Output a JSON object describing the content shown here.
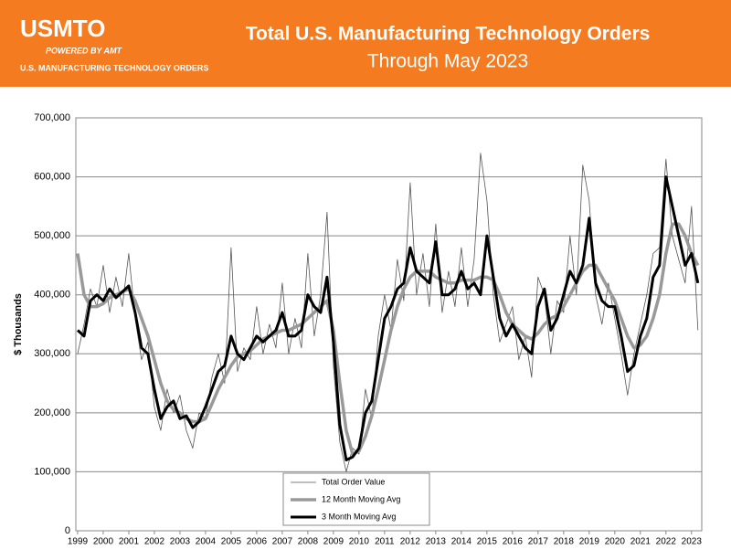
{
  "header": {
    "logo": "USMTO",
    "powered_by": "POWERED BY AMT",
    "tagline": "U.S. MANUFACTURING TECHNOLOGY ORDERS"
  },
  "chart_data": {
    "type": "line",
    "title": "Total U.S. Manufacturing Technology Orders",
    "subtitle": "Through May 2023",
    "y_label": "$ Thousands",
    "x": [
      1999,
      1999.25,
      1999.5,
      1999.75,
      2000,
      2000.25,
      2000.5,
      2000.75,
      2001,
      2001.25,
      2001.5,
      2001.75,
      2002,
      2002.25,
      2002.5,
      2002.75,
      2003,
      2003.25,
      2003.5,
      2003.75,
      2004,
      2004.25,
      2004.5,
      2004.75,
      2005,
      2005.25,
      2005.5,
      2005.75,
      2006,
      2006.25,
      2006.5,
      2006.75,
      2007,
      2007.25,
      2007.5,
      2007.75,
      2008,
      2008.25,
      2008.5,
      2008.75,
      2009,
      2009.25,
      2009.5,
      2009.75,
      2010,
      2010.25,
      2010.5,
      2010.75,
      2011,
      2011.25,
      2011.5,
      2011.75,
      2012,
      2012.25,
      2012.5,
      2012.75,
      2013,
      2013.25,
      2013.5,
      2013.75,
      2014,
      2014.25,
      2014.5,
      2014.75,
      2015,
      2015.25,
      2015.5,
      2015.75,
      2016,
      2016.25,
      2016.5,
      2016.75,
      2017,
      2017.25,
      2017.5,
      2017.75,
      2018,
      2018.25,
      2018.5,
      2018.75,
      2019,
      2019.25,
      2019.5,
      2019.75,
      2020,
      2020.25,
      2020.5,
      2020.75,
      2021,
      2021.25,
      2021.5,
      2021.75,
      2022,
      2022.25,
      2022.5,
      2022.75,
      2023,
      2023.25
    ],
    "series": [
      {
        "name": "Total Order Value",
        "color": "#555555",
        "width": 0.8,
        "values": [
          300000,
          350000,
          410000,
          380000,
          450000,
          370000,
          430000,
          380000,
          470000,
          360000,
          290000,
          320000,
          210000,
          170000,
          240000,
          200000,
          230000,
          170000,
          140000,
          200000,
          190000,
          260000,
          300000,
          250000,
          480000,
          270000,
          310000,
          290000,
          380000,
          300000,
          350000,
          310000,
          420000,
          300000,
          360000,
          310000,
          470000,
          330000,
          400000,
          540000,
          280000,
          150000,
          100000,
          140000,
          130000,
          240000,
          190000,
          330000,
          400000,
          340000,
          460000,
          390000,
          590000,
          400000,
          470000,
          380000,
          520000,
          370000,
          440000,
          380000,
          480000,
          380000,
          460000,
          640000,
          560000,
          400000,
          320000,
          350000,
          380000,
          290000,
          330000,
          260000,
          430000,
          400000,
          300000,
          390000,
          370000,
          500000,
          400000,
          620000,
          560000,
          400000,
          350000,
          420000,
          360000,
          300000,
          230000,
          300000,
          350000,
          400000,
          470000,
          480000,
          630000,
          500000,
          460000,
          420000,
          550000,
          340000
        ]
      },
      {
        "name": "12 Month Moving Avg",
        "color": "#999999",
        "width": 3.5,
        "values": [
          470000,
          400000,
          380000,
          380000,
          385000,
          395000,
          400000,
          405000,
          410000,
          390000,
          360000,
          330000,
          290000,
          250000,
          220000,
          205000,
          200000,
          190000,
          185000,
          185000,
          190000,
          215000,
          240000,
          260000,
          280000,
          295000,
          300000,
          305000,
          315000,
          325000,
          330000,
          335000,
          340000,
          340000,
          345000,
          350000,
          360000,
          370000,
          380000,
          390000,
          340000,
          250000,
          170000,
          130000,
          135000,
          160000,
          195000,
          240000,
          290000,
          340000,
          380000,
          410000,
          430000,
          440000,
          440000,
          440000,
          430000,
          425000,
          420000,
          420000,
          425000,
          425000,
          425000,
          430000,
          430000,
          425000,
          400000,
          370000,
          350000,
          340000,
          330000,
          325000,
          335000,
          350000,
          360000,
          365000,
          380000,
          400000,
          420000,
          440000,
          450000,
          450000,
          430000,
          410000,
          390000,
          360000,
          330000,
          310000,
          315000,
          330000,
          360000,
          400000,
          470000,
          520000,
          520000,
          500000,
          470000,
          450000
        ]
      },
      {
        "name": "3 Month Moving Avg",
        "color": "#000000",
        "width": 3,
        "values": [
          340000,
          330000,
          390000,
          400000,
          390000,
          410000,
          395000,
          405000,
          415000,
          370000,
          310000,
          300000,
          240000,
          190000,
          210000,
          220000,
          190000,
          195000,
          175000,
          185000,
          210000,
          240000,
          270000,
          280000,
          330000,
          300000,
          290000,
          310000,
          330000,
          320000,
          330000,
          340000,
          370000,
          330000,
          330000,
          340000,
          400000,
          380000,
          370000,
          430000,
          320000,
          180000,
          120000,
          125000,
          140000,
          200000,
          220000,
          290000,
          360000,
          380000,
          410000,
          420000,
          480000,
          440000,
          430000,
          420000,
          490000,
          400000,
          400000,
          410000,
          440000,
          410000,
          420000,
          400000,
          500000,
          430000,
          360000,
          330000,
          350000,
          330000,
          310000,
          300000,
          380000,
          410000,
          340000,
          360000,
          400000,
          440000,
          420000,
          450000,
          530000,
          420000,
          390000,
          380000,
          380000,
          330000,
          270000,
          280000,
          330000,
          360000,
          430000,
          450000,
          600000,
          550000,
          500000,
          450000,
          470000,
          420000
        ]
      }
    ],
    "xlim": [
      1998.93,
      2023.4
    ],
    "xticks": [
      1999,
      2000,
      2001,
      2002,
      2003,
      2004,
      2005,
      2006,
      2007,
      2008,
      2009,
      2010,
      2011,
      2012,
      2013,
      2014,
      2015,
      2016,
      2017,
      2018,
      2019,
      2020,
      2021,
      2022,
      2023
    ],
    "ylim": [
      0,
      700000
    ],
    "yticks": [
      0,
      {
        "value": 100000,
        "label": "100,000"
      },
      {
        "value": 200000,
        "label": "200,000"
      },
      {
        "value": 300000,
        "label": "300,000"
      },
      {
        "value": 400000,
        "label": "400,000"
      },
      {
        "value": 500000,
        "label": "500,000"
      },
      {
        "value": 600000,
        "label": "600,000"
      },
      {
        "value": 700000,
        "label": "700,000"
      }
    ],
    "grid": true
  }
}
